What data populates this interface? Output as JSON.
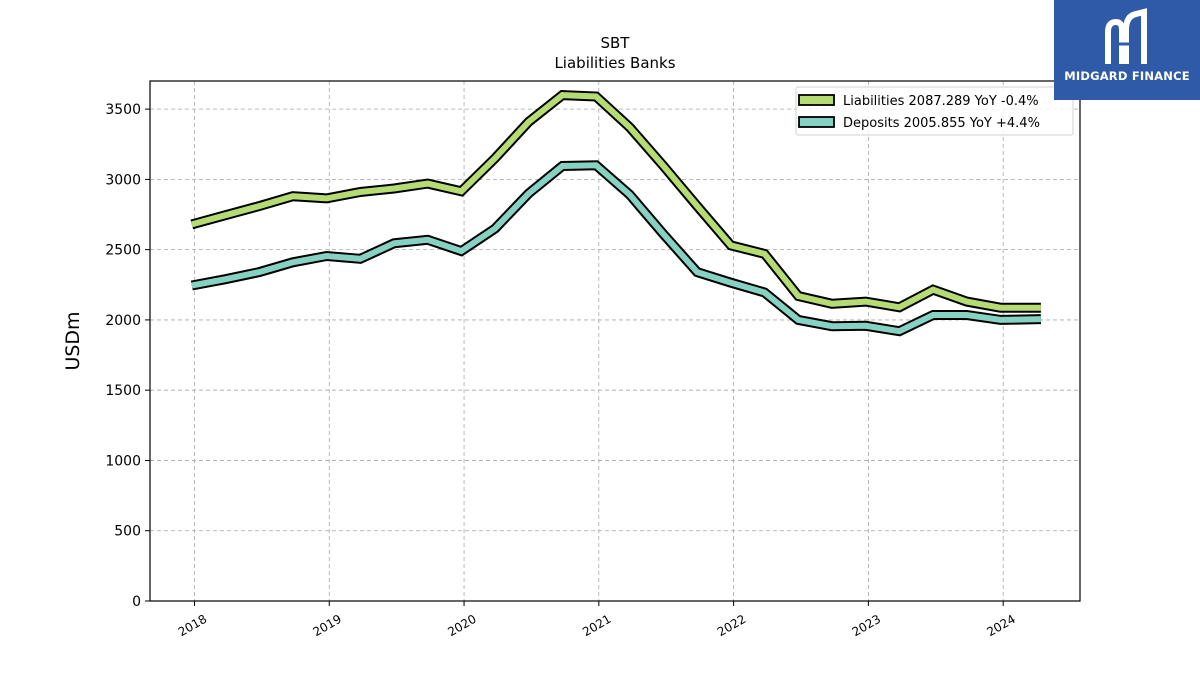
{
  "chart_data": {
    "type": "line",
    "title": "SBT",
    "subtitle": "Liabilities Banks",
    "xlabel": "",
    "ylabel": "USDm",
    "ylim": [
      0,
      3700
    ],
    "xlim": [
      2017.67,
      2024.57
    ],
    "yticks": [
      0,
      500,
      1000,
      1500,
      2000,
      2500,
      3000,
      3500
    ],
    "xticks": [
      2018,
      2019,
      2020,
      2021,
      2022,
      2023,
      2024
    ],
    "grid": true,
    "legend_position": "top-right",
    "x": [
      2017.98,
      2018.23,
      2018.48,
      2018.73,
      2018.98,
      2019.23,
      2019.48,
      2019.73,
      2019.98,
      2020.23,
      2020.48,
      2020.73,
      2020.98,
      2021.23,
      2021.48,
      2021.73,
      2021.98,
      2022.23,
      2022.48,
      2022.73,
      2022.98,
      2023.23,
      2023.48,
      2023.73,
      2023.98,
      2024.28
    ],
    "series": [
      {
        "name": "Liabilities",
        "legend_label": "Liabilities  2087.289 YoY -0.4%",
        "color": "#b5dc72",
        "values": [
          2680,
          2745,
          2810,
          2880,
          2865,
          2910,
          2935,
          2970,
          2915,
          3150,
          3410,
          3600,
          3590,
          3370,
          3095,
          2810,
          2530,
          2470,
          2170,
          2115,
          2130,
          2090,
          2215,
          2130,
          2087,
          2087
        ]
      },
      {
        "name": "Deposits",
        "legend_label": "Deposits  2005.855 YoY +4.4%",
        "color": "#86d2c2",
        "values": [
          2245,
          2290,
          2340,
          2410,
          2455,
          2435,
          2545,
          2570,
          2490,
          2650,
          2900,
          3095,
          3100,
          2890,
          2610,
          2340,
          2265,
          2195,
          2000,
          1955,
          1958,
          1920,
          2035,
          2035,
          2000,
          2006
        ]
      }
    ]
  },
  "logo": {
    "text": "MIDGARD FINANCE",
    "icon": "midgard-logo-icon"
  }
}
